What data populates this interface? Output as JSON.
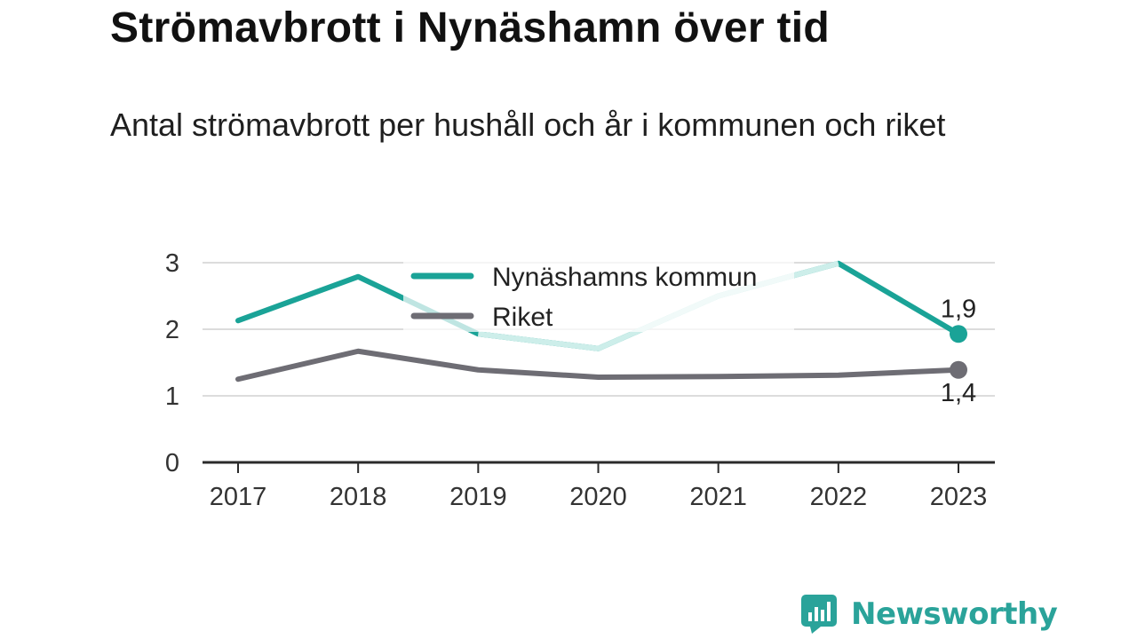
{
  "header": {
    "title": "Strömavbrott i Nynäshamn över tid",
    "subtitle": "Antal strömavbrott per hushåll och år i kommunen och riket"
  },
  "chart_data": {
    "type": "line",
    "title": "Strömavbrott i Nynäshamn över tid",
    "subtitle": "Antal strömavbrott per hushåll och år i kommunen och riket",
    "x": [
      "2017",
      "2018",
      "2019",
      "2020",
      "2021",
      "2022",
      "2023"
    ],
    "ylim": [
      0,
      3
    ],
    "yticks": [
      "0",
      "1",
      "2",
      "3"
    ],
    "grid": true,
    "legend_position": "top-center",
    "series": [
      {
        "name": "Nynäshamns kommun",
        "color": "#1aa397",
        "highlight_color": "#cdeeea",
        "values": [
          2.13,
          2.79,
          1.93,
          1.71,
          2.5,
          2.99,
          1.93
        ],
        "end_label": "1,9"
      },
      {
        "name": "Riket",
        "color": "#6e6d74",
        "values": [
          1.25,
          1.67,
          1.39,
          1.28,
          1.29,
          1.31,
          1.39
        ],
        "end_label": "1,4"
      }
    ]
  },
  "brand": {
    "name": "Newsworthy",
    "icon": "bar-chart-speech-bubble-icon",
    "color": "#2aa39a"
  }
}
